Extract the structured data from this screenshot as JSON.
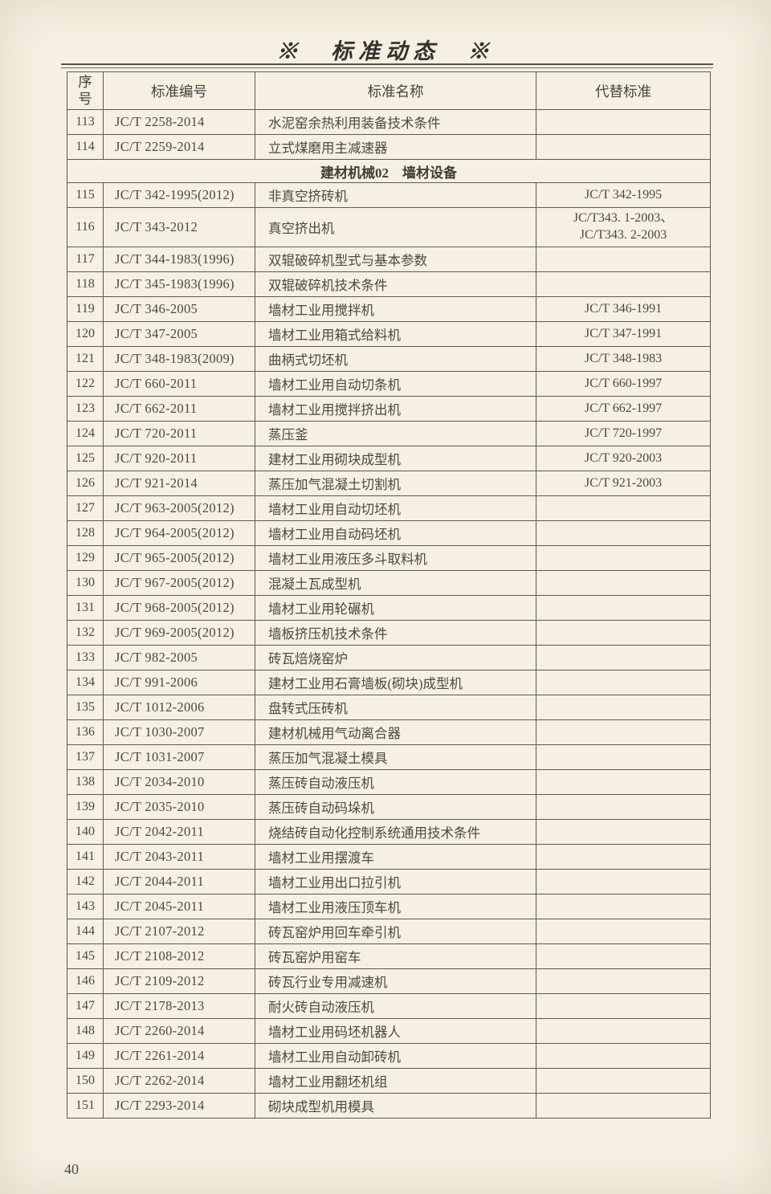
{
  "page": {
    "title": "※　标准动态　※",
    "page_number": "40"
  },
  "table": {
    "headers": [
      "序\n号",
      "标准编号",
      "标准名称",
      "代替标准"
    ],
    "rows": [
      {
        "type": "data",
        "no": "113",
        "code": "JC/T 2258-2014",
        "name": "水泥窑余热利用装备技术条件",
        "replaced": ""
      },
      {
        "type": "data",
        "no": "114",
        "code": "JC/T 2259-2014",
        "name": "立式煤磨用主减速器",
        "replaced": ""
      },
      {
        "type": "section",
        "label": "建材机械02　墙材设备"
      },
      {
        "type": "data",
        "no": "115",
        "code": "JC/T 342-1995(2012)",
        "name": "非真空挤砖机",
        "replaced": "JC/T 342-1995"
      },
      {
        "type": "data",
        "no": "116",
        "code": "JC/T 343-2012",
        "name": "真空挤出机",
        "replaced": "JC/T343. 1-2003、\nJC/T343. 2-2003",
        "tall": true
      },
      {
        "type": "data",
        "no": "117",
        "code": "JC/T 344-1983(1996)",
        "name": "双辊破碎机型式与基本参数",
        "replaced": ""
      },
      {
        "type": "data",
        "no": "118",
        "code": "JC/T 345-1983(1996)",
        "name": "双辊破碎机技术条件",
        "replaced": ""
      },
      {
        "type": "data",
        "no": "119",
        "code": "JC/T 346-2005",
        "name": "墙材工业用搅拌机",
        "replaced": "JC/T 346-1991"
      },
      {
        "type": "data",
        "no": "120",
        "code": "JC/T 347-2005",
        "name": "墙材工业用箱式给料机",
        "replaced": "JC/T 347-1991"
      },
      {
        "type": "data",
        "no": "121",
        "code": "JC/T 348-1983(2009)",
        "name": "曲柄式切坯机",
        "replaced": "JC/T 348-1983"
      },
      {
        "type": "data",
        "no": "122",
        "code": "JC/T 660-2011",
        "name": "墙材工业用自动切条机",
        "replaced": "JC/T 660-1997"
      },
      {
        "type": "data",
        "no": "123",
        "code": "JC/T 662-2011",
        "name": "墙材工业用搅拌挤出机",
        "replaced": "JC/T 662-1997"
      },
      {
        "type": "data",
        "no": "124",
        "code": "JC/T 720-2011",
        "name": "蒸压釜",
        "replaced": "JC/T 720-1997"
      },
      {
        "type": "data",
        "no": "125",
        "code": "JC/T 920-2011",
        "name": "建材工业用砌块成型机",
        "replaced": "JC/T 920-2003"
      },
      {
        "type": "data",
        "no": "126",
        "code": "JC/T 921-2014",
        "name": "蒸压加气混凝土切割机",
        "replaced": "JC/T 921-2003"
      },
      {
        "type": "data",
        "no": "127",
        "code": "JC/T 963-2005(2012)",
        "name": "墙材工业用自动切坯机",
        "replaced": ""
      },
      {
        "type": "data",
        "no": "128",
        "code": "JC/T 964-2005(2012)",
        "name": "墙材工业用自动码坯机",
        "replaced": ""
      },
      {
        "type": "data",
        "no": "129",
        "code": "JC/T 965-2005(2012)",
        "name": "墙材工业用液压多斗取料机",
        "replaced": ""
      },
      {
        "type": "data",
        "no": "130",
        "code": "JC/T 967-2005(2012)",
        "name": "混凝土瓦成型机",
        "replaced": ""
      },
      {
        "type": "data",
        "no": "131",
        "code": "JC/T 968-2005(2012)",
        "name": "墙材工业用轮碾机",
        "replaced": ""
      },
      {
        "type": "data",
        "no": "132",
        "code": "JC/T 969-2005(2012)",
        "name": "墙板挤压机技术条件",
        "replaced": ""
      },
      {
        "type": "data",
        "no": "133",
        "code": "JC/T 982-2005",
        "name": "砖瓦焙烧窑炉",
        "replaced": ""
      },
      {
        "type": "data",
        "no": "134",
        "code": "JC/T 991-2006",
        "name": "建材工业用石膏墙板(砌块)成型机",
        "replaced": ""
      },
      {
        "type": "data",
        "no": "135",
        "code": "JC/T 1012-2006",
        "name": "盘转式压砖机",
        "replaced": ""
      },
      {
        "type": "data",
        "no": "136",
        "code": "JC/T 1030-2007",
        "name": "建材机械用气动离合器",
        "replaced": ""
      },
      {
        "type": "data",
        "no": "137",
        "code": "JC/T 1031-2007",
        "name": "蒸压加气混凝土模具",
        "replaced": ""
      },
      {
        "type": "data",
        "no": "138",
        "code": "JC/T 2034-2010",
        "name": "蒸压砖自动液压机",
        "replaced": ""
      },
      {
        "type": "data",
        "no": "139",
        "code": "JC/T 2035-2010",
        "name": "蒸压砖自动码垛机",
        "replaced": ""
      },
      {
        "type": "data",
        "no": "140",
        "code": "JC/T 2042-2011",
        "name": "烧结砖自动化控制系统通用技术条件",
        "replaced": ""
      },
      {
        "type": "data",
        "no": "141",
        "code": "JC/T 2043-2011",
        "name": "墙材工业用摆渡车",
        "replaced": ""
      },
      {
        "type": "data",
        "no": "142",
        "code": "JC/T 2044-2011",
        "name": "墙材工业用出口拉引机",
        "replaced": ""
      },
      {
        "type": "data",
        "no": "143",
        "code": "JC/T 2045-2011",
        "name": "墙材工业用液压顶车机",
        "replaced": ""
      },
      {
        "type": "data",
        "no": "144",
        "code": "JC/T 2107-2012",
        "name": "砖瓦窑炉用回车牵引机",
        "replaced": ""
      },
      {
        "type": "data",
        "no": "145",
        "code": "JC/T 2108-2012",
        "name": "砖瓦窑炉用窑车",
        "replaced": ""
      },
      {
        "type": "data",
        "no": "146",
        "code": "JC/T 2109-2012",
        "name": "砖瓦行业专用减速机",
        "replaced": ""
      },
      {
        "type": "data",
        "no": "147",
        "code": "JC/T 2178-2013",
        "name": "耐火砖自动液压机",
        "replaced": ""
      },
      {
        "type": "data",
        "no": "148",
        "code": "JC/T 2260-2014",
        "name": "墙材工业用码坯机器人",
        "replaced": ""
      },
      {
        "type": "data",
        "no": "149",
        "code": "JC/T 2261-2014",
        "name": "墙材工业用自动卸砖机",
        "replaced": ""
      },
      {
        "type": "data",
        "no": "150",
        "code": "JC/T 2262-2014",
        "name": "墙材工业用翻坯机组",
        "replaced": ""
      },
      {
        "type": "data",
        "no": "151",
        "code": "JC/T 2293-2014",
        "name": "砌块成型机用模具",
        "replaced": ""
      }
    ]
  }
}
